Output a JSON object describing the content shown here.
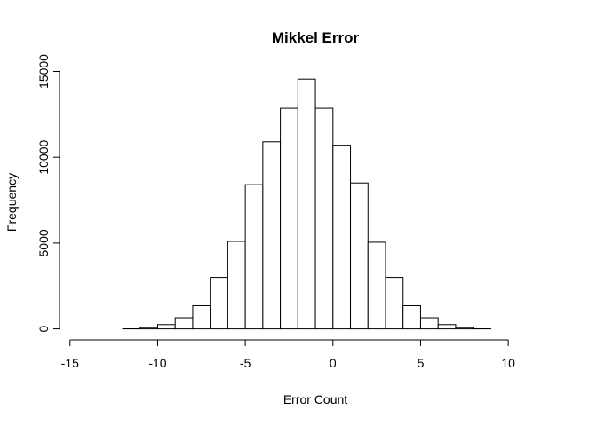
{
  "chart_data": {
    "type": "bar",
    "title": "Mikkel Error",
    "xlabel": "Error Count",
    "ylabel": "Frequency",
    "xlim": [
      -15,
      12
    ],
    "ylim": [
      0,
      15000
    ],
    "x_ticks": [
      -15,
      -10,
      -5,
      0,
      5,
      10
    ],
    "y_ticks": [
      0,
      5000,
      10000,
      15000
    ],
    "bins": [
      {
        "start": -14,
        "end": -13,
        "value": 0
      },
      {
        "start": -13,
        "end": -12,
        "value": 0
      },
      {
        "start": -12,
        "end": -11,
        "value": 5
      },
      {
        "start": -11,
        "end": -10,
        "value": 70
      },
      {
        "start": -10,
        "end": -9,
        "value": 250
      },
      {
        "start": -9,
        "end": -8,
        "value": 650
      },
      {
        "start": -8,
        "end": -7,
        "value": 1350
      },
      {
        "start": -7,
        "end": -6,
        "value": 3000
      },
      {
        "start": -6,
        "end": -5,
        "value": 5100
      },
      {
        "start": -5,
        "end": -4,
        "value": 8400
      },
      {
        "start": -4,
        "end": -3,
        "value": 10900
      },
      {
        "start": -3,
        "end": -2,
        "value": 12850
      },
      {
        "start": -2,
        "end": -1,
        "value": 14550
      },
      {
        "start": -1,
        "end": 0,
        "value": 12850
      },
      {
        "start": 0,
        "end": 1,
        "value": 10700
      },
      {
        "start": 1,
        "end": 2,
        "value": 8500
      },
      {
        "start": 2,
        "end": 3,
        "value": 5050
      },
      {
        "start": 3,
        "end": 4,
        "value": 3000
      },
      {
        "start": 4,
        "end": 5,
        "value": 1350
      },
      {
        "start": 5,
        "end": 6,
        "value": 650
      },
      {
        "start": 6,
        "end": 7,
        "value": 250
      },
      {
        "start": 7,
        "end": 8,
        "value": 70
      },
      {
        "start": 8,
        "end": 9,
        "value": 5
      },
      {
        "start": 9,
        "end": 10,
        "value": 0
      },
      {
        "start": 10,
        "end": 11,
        "value": 0
      },
      {
        "start": 11,
        "end": 12,
        "value": 0
      }
    ]
  }
}
